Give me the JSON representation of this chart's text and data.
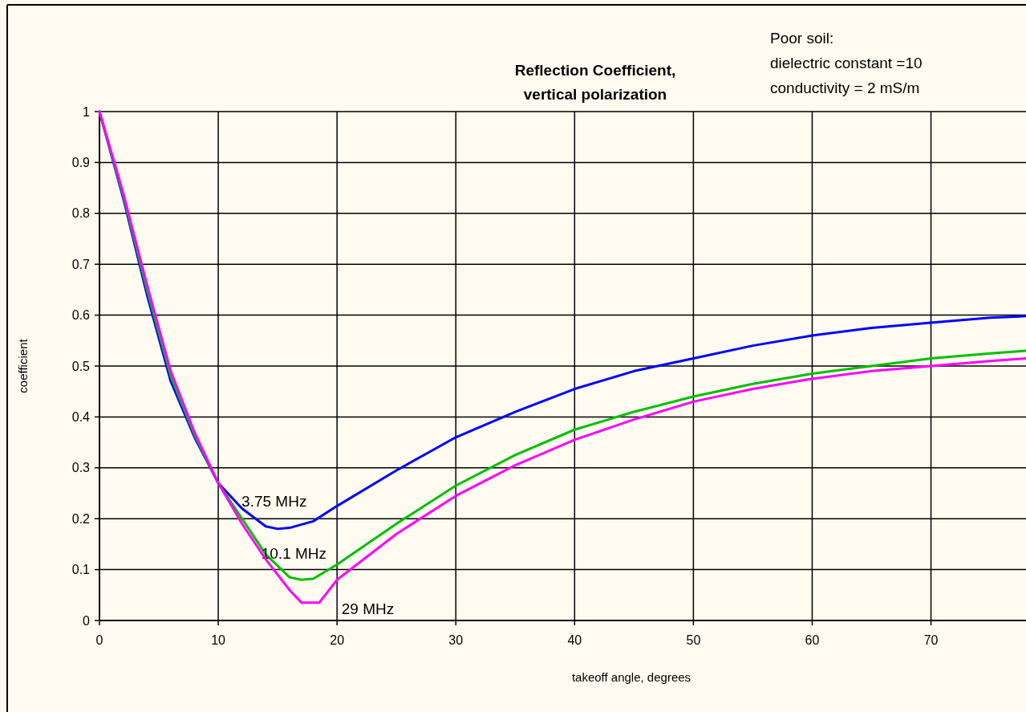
{
  "chart_data": {
    "type": "line",
    "title": "Reflection Coefficient,\nvertical polarization",
    "xlabel": "takeoff angle, degrees",
    "ylabel": "coefficient",
    "annotations": [
      "Poor soil:\ndielectric constant =10\nconductivity = 2 mS/m"
    ],
    "xlim": [
      0,
      78
    ],
    "xticks": [
      0,
      10,
      20,
      30,
      40,
      50,
      60,
      70
    ],
    "ylim": [
      0,
      1
    ],
    "yticks": [
      0,
      0.1,
      0.2,
      0.3,
      0.4,
      0.5,
      0.6,
      0.7,
      0.8,
      0.9,
      1
    ],
    "grid": true,
    "marker": "none",
    "line_style": "solid",
    "series": [
      {
        "name": "3.75 MHz",
        "color": "#0000ff",
        "x": [
          0,
          2,
          4,
          6,
          8,
          10,
          12,
          14,
          15,
          16,
          18,
          20,
          25,
          30,
          35,
          40,
          45,
          50,
          55,
          60,
          65,
          70,
          75,
          78
        ],
        "values": [
          1.0,
          0.83,
          0.64,
          0.47,
          0.36,
          0.27,
          0.22,
          0.185,
          0.18,
          0.182,
          0.195,
          0.225,
          0.295,
          0.36,
          0.41,
          0.455,
          0.49,
          0.515,
          0.54,
          0.56,
          0.575,
          0.585,
          0.595,
          0.598
        ]
      },
      {
        "name": "10.1 MHz",
        "color": "#00c000",
        "x": [
          0,
          2,
          4,
          6,
          8,
          10,
          12,
          14,
          16,
          17,
          18,
          20,
          25,
          30,
          35,
          40,
          45,
          50,
          55,
          60,
          65,
          70,
          75,
          78
        ],
        "values": [
          1.0,
          0.835,
          0.65,
          0.48,
          0.365,
          0.27,
          0.2,
          0.13,
          0.085,
          0.08,
          0.082,
          0.11,
          0.19,
          0.265,
          0.325,
          0.375,
          0.41,
          0.44,
          0.465,
          0.485,
          0.5,
          0.515,
          0.525,
          0.53
        ]
      },
      {
        "name": "29 MHz",
        "color": "#ff00ff",
        "x": [
          0,
          2,
          4,
          6,
          8,
          10,
          12,
          14,
          16,
          17,
          18.5,
          20,
          25,
          30,
          35,
          40,
          45,
          50,
          55,
          60,
          65,
          70,
          75,
          78
        ],
        "values": [
          1.0,
          0.84,
          0.66,
          0.49,
          0.37,
          0.27,
          0.19,
          0.12,
          0.06,
          0.035,
          0.035,
          0.08,
          0.17,
          0.245,
          0.305,
          0.355,
          0.395,
          0.43,
          0.455,
          0.475,
          0.49,
          0.5,
          0.51,
          0.515
        ]
      }
    ]
  }
}
